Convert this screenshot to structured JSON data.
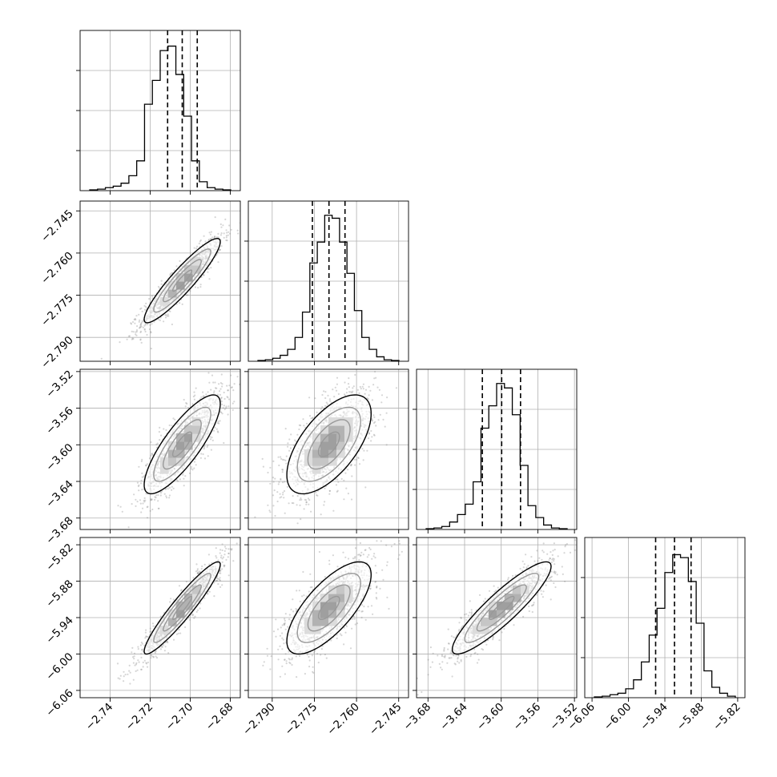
{
  "chart_data": {
    "type": "corner",
    "title": "",
    "parameters": [
      {
        "range": [
          -2.755,
          -2.675
        ],
        "ticks": [
          -2.74,
          -2.72,
          -2.7,
          -2.68
        ],
        "tick_labels": [
          "−2.74",
          "−2.72",
          "−2.70",
          "−2.68"
        ],
        "quantiles": [
          -2.7113,
          -2.704,
          -2.6965
        ],
        "hist": [
          0.5,
          1,
          2,
          3,
          5,
          10,
          20,
          58,
          74,
          94,
          97,
          78,
          50,
          20,
          6,
          2,
          1,
          0.5
        ]
      },
      {
        "range": [
          -2.7985,
          -2.7415
        ],
        "ticks": [
          -2.79,
          -2.775,
          -2.76,
          -2.745
        ],
        "tick_labels": [
          "−2.790",
          "−2.775",
          "−2.760",
          "−2.745"
        ],
        "quantiles": [
          -2.7757,
          -2.7698,
          -2.7641
        ],
        "hist": [
          0.5,
          1,
          2,
          4,
          8,
          16,
          33,
          66,
          80,
          98,
          96,
          80,
          59,
          34,
          16,
          8,
          3,
          1,
          0.5
        ]
      },
      {
        "range": [
          -3.6925,
          -3.5175
        ],
        "ticks": [
          -3.68,
          -3.64,
          -3.6,
          -3.56,
          -3.52
        ],
        "tick_labels": [
          "−3.68",
          "−3.64",
          "−3.60",
          "−3.56",
          "−3.52"
        ],
        "quantiles": [
          -3.6206,
          -3.5995,
          -3.5789
        ],
        "hist": [
          0.5,
          1,
          2,
          5,
          10,
          17,
          32,
          68,
          83,
          98,
          95,
          77,
          43,
          16,
          8,
          3,
          1,
          0.5
        ]
      },
      {
        "range": [
          -6.072,
          -5.808
        ],
        "ticks": [
          -6.06,
          -6.0,
          -5.94,
          -5.88,
          -5.82
        ],
        "tick_labels": [
          "−6.06",
          "−6.00",
          "−5.94",
          "−5.88",
          "−5.82"
        ],
        "quantiles": [
          -5.9552,
          -5.9241,
          -5.8968
        ],
        "hist": [
          0.5,
          1,
          2,
          3,
          6,
          12,
          24,
          42,
          60,
          84,
          96,
          94,
          78,
          50,
          18,
          7,
          3,
          1
        ]
      }
    ],
    "grid": true,
    "pairs": [
      {
        "row": 1,
        "col": 0,
        "mean": [
          -2.704,
          -2.7698
        ],
        "sd": [
          0.0095,
          0.0075
        ],
        "rho": 0.92
      },
      {
        "row": 2,
        "col": 0,
        "mean": [
          -2.704,
          -3.5995
        ],
        "sd": [
          0.0095,
          0.027
        ],
        "rho": 0.82
      },
      {
        "row": 2,
        "col": 1,
        "mean": [
          -2.7698,
          -3.5995
        ],
        "sd": [
          0.0075,
          0.027
        ],
        "rho": 0.62
      },
      {
        "row": 3,
        "col": 0,
        "mean": [
          -2.704,
          -5.9241
        ],
        "sd": [
          0.0095,
          0.038
        ],
        "rho": 0.94
      },
      {
        "row": 3,
        "col": 1,
        "mean": [
          -2.7698,
          -5.9241
        ],
        "sd": [
          0.0075,
          0.038
        ],
        "rho": 0.72
      },
      {
        "row": 3,
        "col": 2,
        "mean": [
          -3.5995,
          -5.9241
        ],
        "sd": [
          0.027,
          0.038
        ],
        "rho": 0.9
      }
    ]
  }
}
